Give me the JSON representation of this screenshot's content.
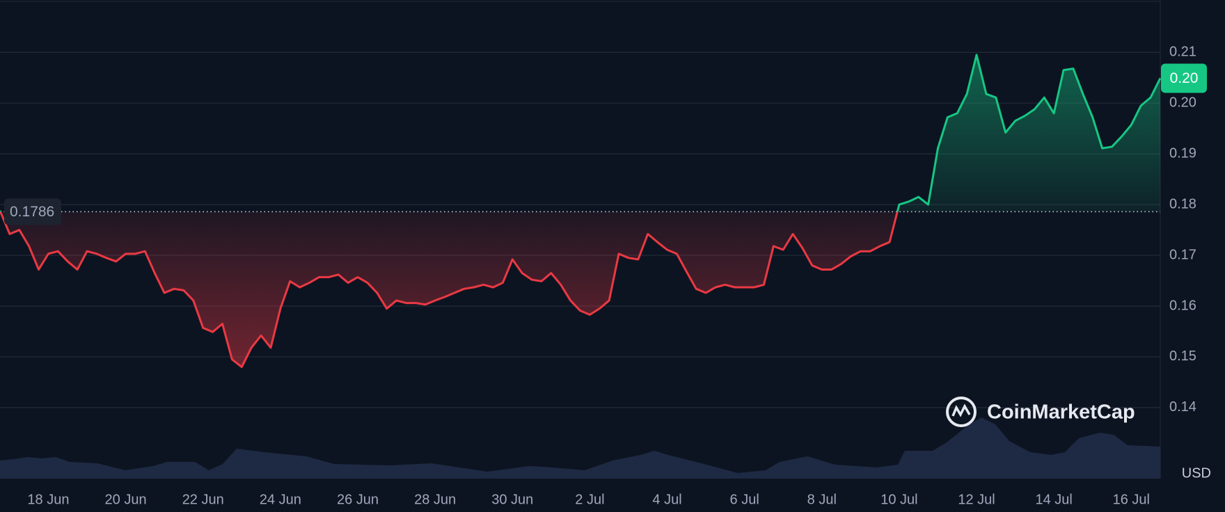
{
  "chart_data": {
    "type": "line",
    "categories": [
      null,
      null,
      null,
      null,
      null,
      "18 Jun",
      null,
      null,
      null,
      null,
      null,
      null,
      null,
      "20 Jun",
      null,
      null,
      null,
      null,
      null,
      null,
      null,
      "22 Jun",
      null,
      null,
      null,
      null,
      null,
      null,
      null,
      "24 Jun",
      null,
      null,
      null,
      null,
      null,
      null,
      null,
      "26 Jun",
      null,
      null,
      null,
      null,
      null,
      null,
      null,
      "28 Jun",
      null,
      null,
      null,
      null,
      null,
      null,
      null,
      "30 Jun",
      null,
      null,
      null,
      null,
      null,
      null,
      null,
      "2 Jul",
      null,
      null,
      null,
      null,
      null,
      null,
      null,
      "4 Jul",
      null,
      null,
      null,
      null,
      null,
      null,
      null,
      "6 Jul",
      null,
      null,
      null,
      null,
      null,
      null,
      null,
      "8 Jul",
      null,
      null,
      null,
      null,
      null,
      null,
      null,
      "10 Jul",
      null,
      null,
      null,
      null,
      null,
      null,
      null,
      "12 Jul",
      null,
      null,
      null,
      null,
      null,
      null,
      null,
      "14 Jul",
      null,
      null,
      null,
      null,
      null,
      null,
      null,
      "16 Jul",
      null,
      null,
      null
    ],
    "values": [
      0.1788,
      0.1742,
      0.175,
      0.1718,
      0.1672,
      0.1703,
      0.1708,
      0.1688,
      0.1672,
      0.1708,
      0.1703,
      0.1695,
      0.1688,
      0.1703,
      0.1703,
      0.1708,
      0.1665,
      0.1626,
      0.1634,
      0.1631,
      0.1611,
      0.1557,
      0.1549,
      0.1565,
      0.1495,
      0.148,
      0.1518,
      0.1542,
      0.1518,
      0.1595,
      0.1649,
      0.1637,
      0.1646,
      0.1657,
      0.1657,
      0.1662,
      0.1646,
      0.1657,
      0.1646,
      0.1626,
      0.1595,
      0.1611,
      0.1606,
      0.1606,
      0.1603,
      0.1611,
      0.1618,
      0.1626,
      0.1634,
      0.1637,
      0.1642,
      0.1637,
      0.1646,
      0.1692,
      0.1665,
      0.1652,
      0.1649,
      0.1665,
      0.1642,
      0.1611,
      0.1591,
      0.1583,
      0.1595,
      0.1611,
      0.1703,
      0.1695,
      0.1692,
      0.1742,
      0.1726,
      0.1711,
      0.1703,
      0.1668,
      0.1634,
      0.1626,
      0.1637,
      0.1642,
      0.1637,
      0.1637,
      0.1637,
      0.1642,
      0.1718,
      0.1711,
      0.1742,
      0.1714,
      0.168,
      0.1672,
      0.1672,
      0.1683,
      0.1698,
      0.1708,
      0.1708,
      0.1718,
      0.1726,
      0.18,
      0.1806,
      0.1815,
      0.18,
      0.1911,
      0.1972,
      0.198,
      0.2018,
      0.2095,
      0.2018,
      0.2011,
      0.1942,
      0.1965,
      0.1975,
      0.1988,
      0.2011,
      0.198,
      0.2065,
      0.2068,
      0.2018,
      0.1972,
      0.1911,
      0.1914,
      0.1934,
      0.1957,
      0.1995,
      0.2011,
      0.2049
    ],
    "baseline": 0.1786,
    "current_price": {
      "value": 0.2049,
      "label": "0.20"
    },
    "up_color": "#16c784",
    "down_color": "#ea3943",
    "ylim": [
      0.126,
      0.22
    ],
    "yticks": [
      0.14,
      0.15,
      0.16,
      0.17,
      0.18,
      0.19,
      {
        "value": 0.2,
        "label": "0.20"
      },
      0.21
    ],
    "grid": true,
    "unit": "USD",
    "watermark": "CoinMarketCap"
  }
}
